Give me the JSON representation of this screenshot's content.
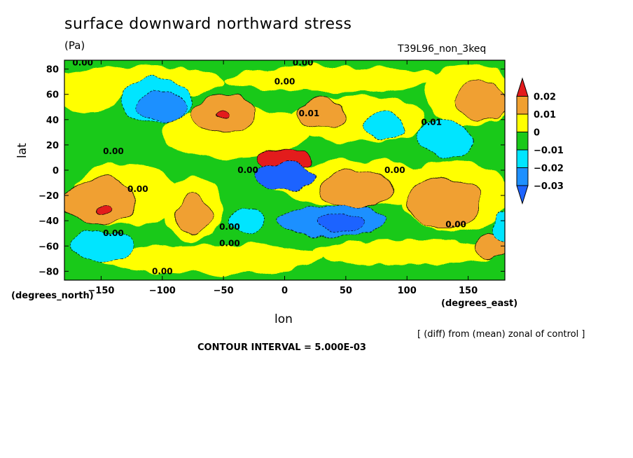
{
  "chart_data": {
    "type": "heatmap",
    "title": "surface downward northward stress",
    "units": "(Pa)",
    "run": "T39L96_non_3keq",
    "note": "[ (diff) from (mean) zonal of control ]",
    "interval": "CONTOUR INTERVAL = 5.000E-03",
    "xlabel": "lon",
    "ylabel": "lat",
    "x_units": "(degrees_east)",
    "y_units": "(degrees_north)",
    "xlim": [
      -180,
      180
    ],
    "ylim": [
      -87,
      87
    ],
    "xticks": [
      -150,
      -100,
      -50,
      0,
      50,
      100,
      150
    ],
    "yticks": [
      -80,
      -60,
      -40,
      -20,
      0,
      20,
      40,
      60,
      80
    ],
    "colorbar": {
      "labels": [
        "0.02",
        "0.01",
        "0",
        "−0.01",
        "−0.02",
        "−0.03"
      ],
      "colors": [
        "#e31a1c",
        "#f0a030",
        "#ffff00",
        "#19c919",
        "#00e5ff",
        "#1e90ff",
        "#1e64ff"
      ]
    },
    "contour_labels": [
      {
        "text": "0.00",
        "lon": -165,
        "lat": 85
      },
      {
        "text": "0.00",
        "lon": 15,
        "lat": 85
      },
      {
        "text": "0.00",
        "lon": 0,
        "lat": 70
      },
      {
        "text": "0.01",
        "lon": 20,
        "lat": 45
      },
      {
        "text": "0.01",
        "lon": 120,
        "lat": 38
      },
      {
        "text": "0.00",
        "lon": -140,
        "lat": 15
      },
      {
        "text": "0.00",
        "lon": -30,
        "lat": 0
      },
      {
        "text": "0.00",
        "lon": 90,
        "lat": 0
      },
      {
        "text": "0.00",
        "lon": -120,
        "lat": -15
      },
      {
        "text": "0.00",
        "lon": -140,
        "lat": -50
      },
      {
        "text": "0.00",
        "lon": -45,
        "lat": -45
      },
      {
        "text": "0.00",
        "lon": -45,
        "lat": -58
      },
      {
        "text": "0.00",
        "lon": 140,
        "lat": -43
      },
      {
        "text": "0.00",
        "lon": -100,
        "lat": -80
      }
    ],
    "field": [
      {
        "lon": -100,
        "lat": 50,
        "value": -0.02,
        "rx": 20,
        "ry": 12
      },
      {
        "lon": -105,
        "lat": 55,
        "value": -0.01,
        "rx": 30,
        "ry": 18
      },
      {
        "lon": -50,
        "lat": 45,
        "value": 0.01,
        "rx": 25,
        "ry": 15
      },
      {
        "lon": -52,
        "lat": 42,
        "value": 0.02,
        "rx": 5,
        "ry": 3
      },
      {
        "lon": 30,
        "lat": 45,
        "value": 0.01,
        "rx": 20,
        "ry": 12
      },
      {
        "lon": 80,
        "lat": 35,
        "value": -0.01,
        "rx": 18,
        "ry": 10
      },
      {
        "lon": 130,
        "lat": 25,
        "value": -0.01,
        "rx": 22,
        "ry": 15
      },
      {
        "lon": 160,
        "lat": 55,
        "value": 0.01,
        "rx": 20,
        "ry": 15
      },
      {
        "lon": 0,
        "lat": 8,
        "value": 0.02,
        "rx": 22,
        "ry": 8
      },
      {
        "lon": 0,
        "lat": -5,
        "value": -0.03,
        "rx": 25,
        "ry": 10
      },
      {
        "lon": -150,
        "lat": -25,
        "value": 0.01,
        "rx": 30,
        "ry": 18
      },
      {
        "lon": -148,
        "lat": -30,
        "value": 0.02,
        "rx": 6,
        "ry": 4
      },
      {
        "lon": -75,
        "lat": -35,
        "value": 0.01,
        "rx": 15,
        "ry": 15
      },
      {
        "lon": 60,
        "lat": -15,
        "value": 0.01,
        "rx": 30,
        "ry": 15
      },
      {
        "lon": 130,
        "lat": -25,
        "value": 0.01,
        "rx": 30,
        "ry": 20
      },
      {
        "lon": 40,
        "lat": -40,
        "value": -0.02,
        "rx": 45,
        "ry": 12
      },
      {
        "lon": 45,
        "lat": -42,
        "value": -0.03,
        "rx": 20,
        "ry": 6
      },
      {
        "lon": -150,
        "lat": -60,
        "value": -0.01,
        "rx": 25,
        "ry": 12
      },
      {
        "lon": -30,
        "lat": -40,
        "value": -0.01,
        "rx": 15,
        "ry": 10
      },
      {
        "lon": 170,
        "lat": -60,
        "value": 0.01,
        "rx": 15,
        "ry": 10
      },
      {
        "lon": 180,
        "lat": -45,
        "value": -0.01,
        "rx": 10,
        "ry": 10
      }
    ]
  }
}
